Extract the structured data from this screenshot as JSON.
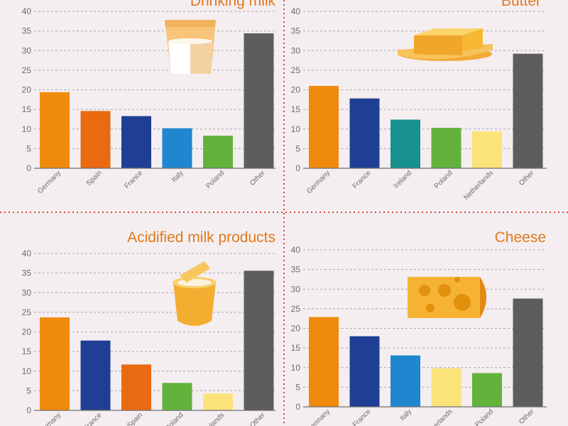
{
  "colors": {
    "orange": "#f08a0c",
    "dark_orange": "#ea6a12",
    "navy": "#1f3f94",
    "blue": "#1f86cf",
    "green": "#62b23b",
    "teal": "#16918f",
    "pale_yellow": "#fbe37a",
    "gray": "#5d5d5d",
    "title": "#e07a1c",
    "background": "#f4eef1"
  },
  "chart_data": [
    {
      "type": "bar",
      "title": "Drinking milk",
      "icon": "milk-glass-icon",
      "categories": [
        "Germany",
        "Spain",
        "France",
        "Italy",
        "Poland",
        "Other"
      ],
      "values": [
        19.4,
        14.6,
        13.3,
        10.2,
        8.3,
        34.4
      ],
      "bar_colors": [
        "#f08a0c",
        "#ea6a12",
        "#1f3f94",
        "#1f86cf",
        "#62b23b",
        "#5d5d5d"
      ],
      "yticks": [
        0,
        5,
        10,
        15,
        20,
        25,
        30,
        35,
        40
      ],
      "ylim": [
        0,
        40
      ],
      "grid": true
    },
    {
      "type": "bar",
      "title": "Butter",
      "icon": "butter-dish-icon",
      "categories": [
        "Germany",
        "France",
        "Ireland",
        "Poland",
        "Netherlands",
        "Other"
      ],
      "values": [
        21,
        17.8,
        12.4,
        10.3,
        9.4,
        29.2
      ],
      "bar_colors": [
        "#f08a0c",
        "#1f3f94",
        "#16918f",
        "#62b23b",
        "#fbe37a",
        "#5d5d5d"
      ],
      "yticks": [
        0,
        5,
        10,
        15,
        20,
        25,
        30,
        35,
        40
      ],
      "ylim": [
        0,
        40
      ],
      "grid": true
    },
    {
      "type": "bar",
      "title": "Acidified milk products",
      "icon": "yogurt-cup-icon",
      "categories": [
        "Germany",
        "France",
        "Spain",
        "Poland",
        "Netherlands",
        "Other"
      ],
      "values": [
        23.7,
        17.8,
        11.7,
        7,
        4.3,
        35.6
      ],
      "bar_colors": [
        "#f08a0c",
        "#1f3f94",
        "#ea6a12",
        "#62b23b",
        "#fbe37a",
        "#5d5d5d"
      ],
      "yticks": [
        0,
        5,
        10,
        15,
        20,
        25,
        30,
        35,
        40
      ],
      "ylim": [
        0,
        40
      ],
      "grid": true
    },
    {
      "type": "bar",
      "title": "Cheese",
      "icon": "cheese-wedge-icon",
      "categories": [
        "Germany",
        "France",
        "Italy",
        "Netherlands",
        "Poland",
        "Other"
      ],
      "values": [
        22.9,
        18,
        13.1,
        9.8,
        8.6,
        27.6
      ],
      "bar_colors": [
        "#f08a0c",
        "#1f3f94",
        "#1f86cf",
        "#fbe37a",
        "#62b23b",
        "#5d5d5d"
      ],
      "yticks": [
        0,
        5,
        10,
        15,
        20,
        25,
        30,
        35,
        40
      ],
      "ylim": [
        0,
        40
      ],
      "grid": true
    }
  ]
}
